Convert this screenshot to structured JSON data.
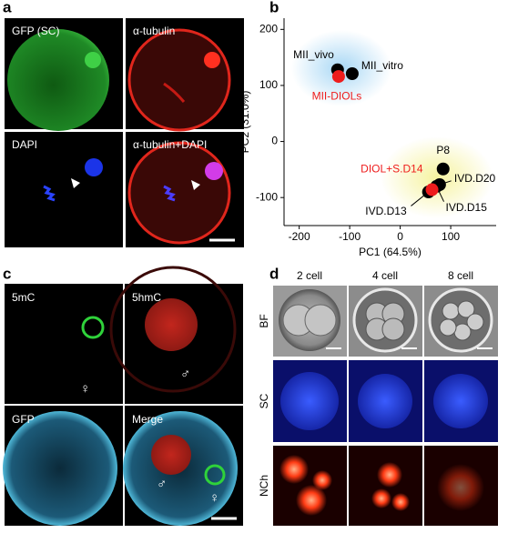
{
  "panel_labels": [
    "a",
    "b",
    "c",
    "d"
  ],
  "panel_a": {
    "labels": [
      "GFP (SC)",
      "α-tubulin",
      "DAPI",
      "α-tubulin+DAPI"
    ]
  },
  "panel_c": {
    "labels": [
      "5mC",
      "5hmC",
      "GFP",
      "Merge"
    ],
    "symbols": [
      "♀",
      "♂",
      "♂",
      "♀"
    ]
  },
  "panel_d": {
    "columns": [
      "2 cell",
      "4 cell",
      "8 cell"
    ],
    "rows": [
      "BF",
      "SC",
      "NCh"
    ]
  },
  "chart_data": {
    "type": "scatter",
    "xlabel": "PC1 (64.5%)",
    "ylabel": "PC2 (31.0%)",
    "xlim": [
      -230,
      190
    ],
    "ylim": [
      -150,
      220
    ],
    "xticks": [
      -200,
      -100,
      0,
      100
    ],
    "yticks": [
      -100,
      0,
      100,
      200
    ],
    "series": [
      {
        "name": "MII_vivo",
        "color": "#000000",
        "x": [
          -124
        ],
        "values": [
          128
        ]
      },
      {
        "name": "MII_vitro",
        "color": "#000000",
        "x": [
          -95
        ],
        "values": [
          121
        ]
      },
      {
        "name": "MII-DIOLs",
        "color": "#ee1c1c",
        "x": [
          -122
        ],
        "values": [
          116
        ]
      },
      {
        "name": "P8",
        "color": "#000000",
        "x": [
          85
        ],
        "values": [
          -49
        ]
      },
      {
        "name": "IVD.D20",
        "color": "#000000",
        "x": [
          78
        ],
        "values": [
          -77
        ]
      },
      {
        "name": "IVD.D15",
        "color": "#000000",
        "x": [
          72
        ],
        "values": [
          -80
        ]
      },
      {
        "name": "IVD.D13",
        "color": "#000000",
        "x": [
          56
        ],
        "values": [
          -90
        ]
      },
      {
        "name": "DIOL+S.D14",
        "color": "#ee1c1c",
        "x": [
          63
        ],
        "values": [
          -86
        ]
      }
    ]
  }
}
